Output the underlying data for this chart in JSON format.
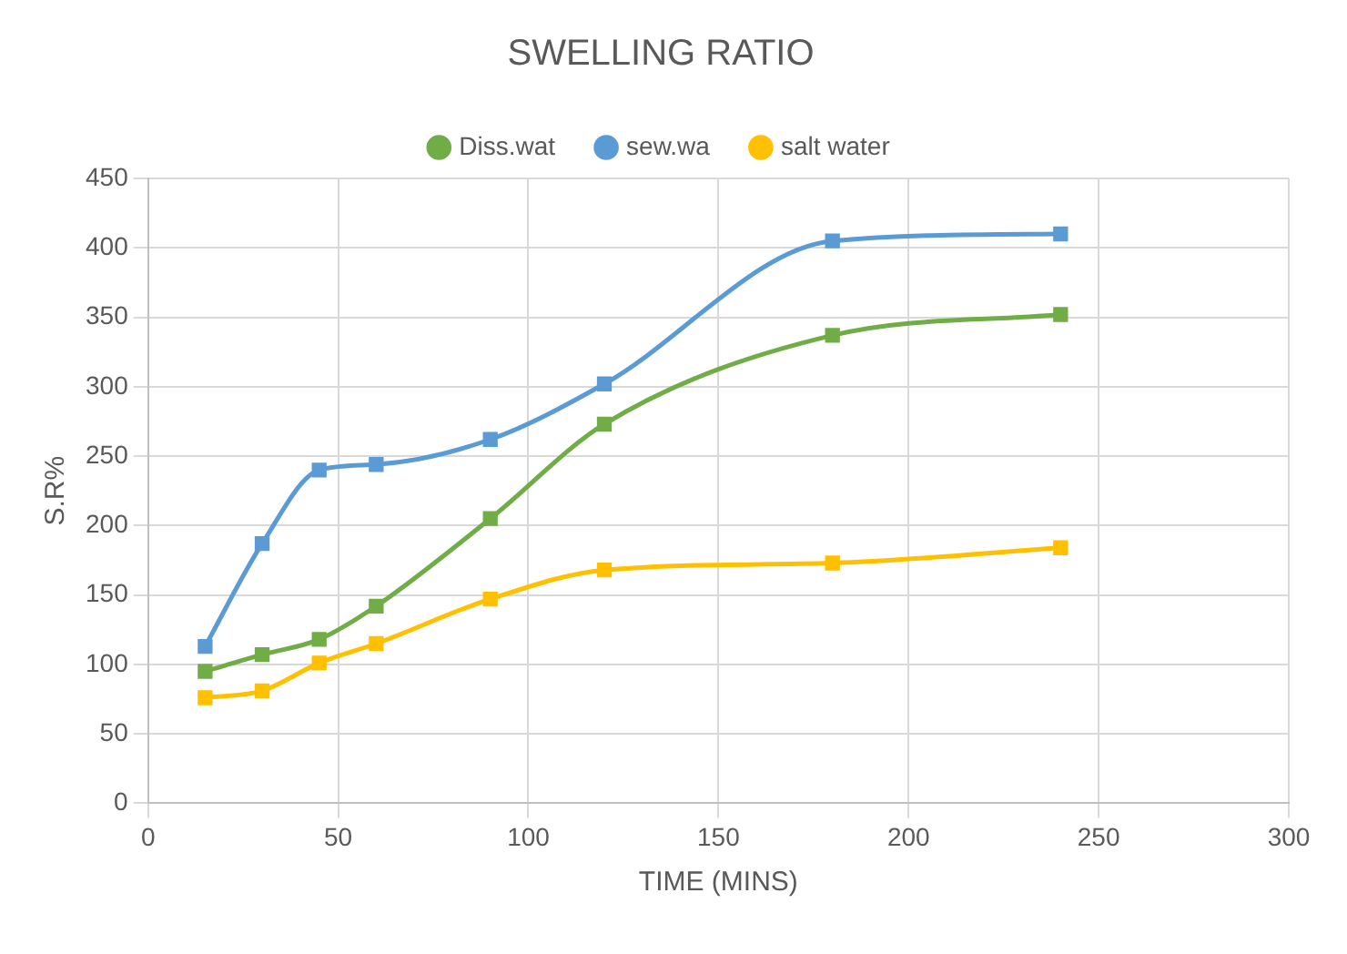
{
  "chart_data": {
    "type": "line",
    "title": "SWELLING RATIO",
    "xlabel": "TIME (MINS)",
    "ylabel": "S.R%",
    "x": [
      15,
      30,
      45,
      60,
      90,
      120,
      180,
      240
    ],
    "series": [
      {
        "name": "Diss.wat",
        "color": "#70ad47",
        "values": [
          95,
          107,
          118,
          142,
          205,
          273,
          337,
          352
        ]
      },
      {
        "name": "sew.wa",
        "color": "#5b9bd5",
        "values": [
          113,
          187,
          240,
          244,
          262,
          302,
          405,
          410
        ]
      },
      {
        "name": "salt water",
        "color": "#ffc000",
        "values": [
          76,
          81,
          101,
          115,
          147,
          168,
          173,
          184
        ]
      }
    ],
    "xlim": [
      0,
      300
    ],
    "xticks": [
      0,
      50,
      100,
      150,
      200,
      250,
      300
    ],
    "ylim": [
      0,
      450
    ],
    "yticks": [
      0,
      50,
      100,
      150,
      200,
      250,
      300,
      350,
      400,
      450
    ],
    "grid": true,
    "legend": "top",
    "marker": "square",
    "line_style": "solid"
  }
}
